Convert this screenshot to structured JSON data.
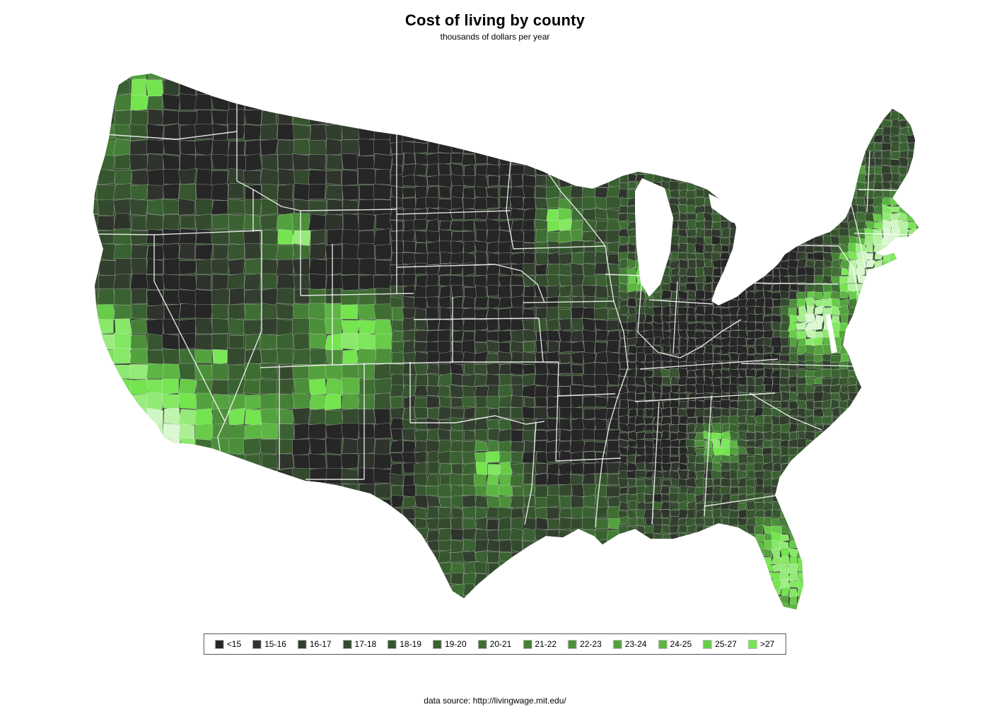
{
  "title": "Cost of living by county",
  "subtitle": "thousands of dollars per year",
  "footer": "data source: http://livingwage.mit.edu/",
  "chart_data": {
    "type": "choropleth",
    "geography": "United States, by county",
    "title": "Cost of living by county",
    "subtitle": "thousands of dollars per year",
    "units": "thousands of dollars per year",
    "source": "data source: http://livingwage.mit.edu/",
    "legend": {
      "position": "bottom-center",
      "orientation": "horizontal",
      "bins": [
        {
          "label": "<15",
          "color": "#262626"
        },
        {
          "label": "15-16",
          "color": "#2e332c"
        },
        {
          "label": "16-17",
          "color": "#323f2e"
        },
        {
          "label": "17-18",
          "color": "#344a2e"
        },
        {
          "label": "18-19",
          "color": "#37552f"
        },
        {
          "label": "19-20",
          "color": "#3a6131"
        },
        {
          "label": "20-21",
          "color": "#3f6e33"
        },
        {
          "label": "21-22",
          "color": "#457e36"
        },
        {
          "label": "22-23",
          "color": "#4c8f3a"
        },
        {
          "label": "23-24",
          "color": "#54a23e"
        },
        {
          "label": "24-25",
          "color": "#5db643"
        },
        {
          "label": "25-27",
          "color": "#68cc49"
        },
        {
          "label": ">27",
          "color": "#74e44f"
        }
      ]
    },
    "visual_observations": {
      "highest_cost_areas": [
        "Washington DC metro",
        "New York City and Long Island",
        "Boston and southern New England",
        "coastal California (San Francisco Bay, Los Angeles, San Diego)",
        "Seattle",
        "Denver and the Colorado Front Range",
        "Minneapolis",
        "Chicago",
        "Atlanta",
        "South Florida",
        "central Texas",
        "Phoenix"
      ],
      "lowest_cost_areas": [
        "northern Great Plains (Montana, North and South Dakota)",
        "Nebraska and Kansas",
        "Missouri and Arkansas Ozarks",
        "Kentucky and West Virginia Appalachia",
        "Mississippi and Alabama",
        "west Texas and southern New Mexico"
      ]
    }
  }
}
